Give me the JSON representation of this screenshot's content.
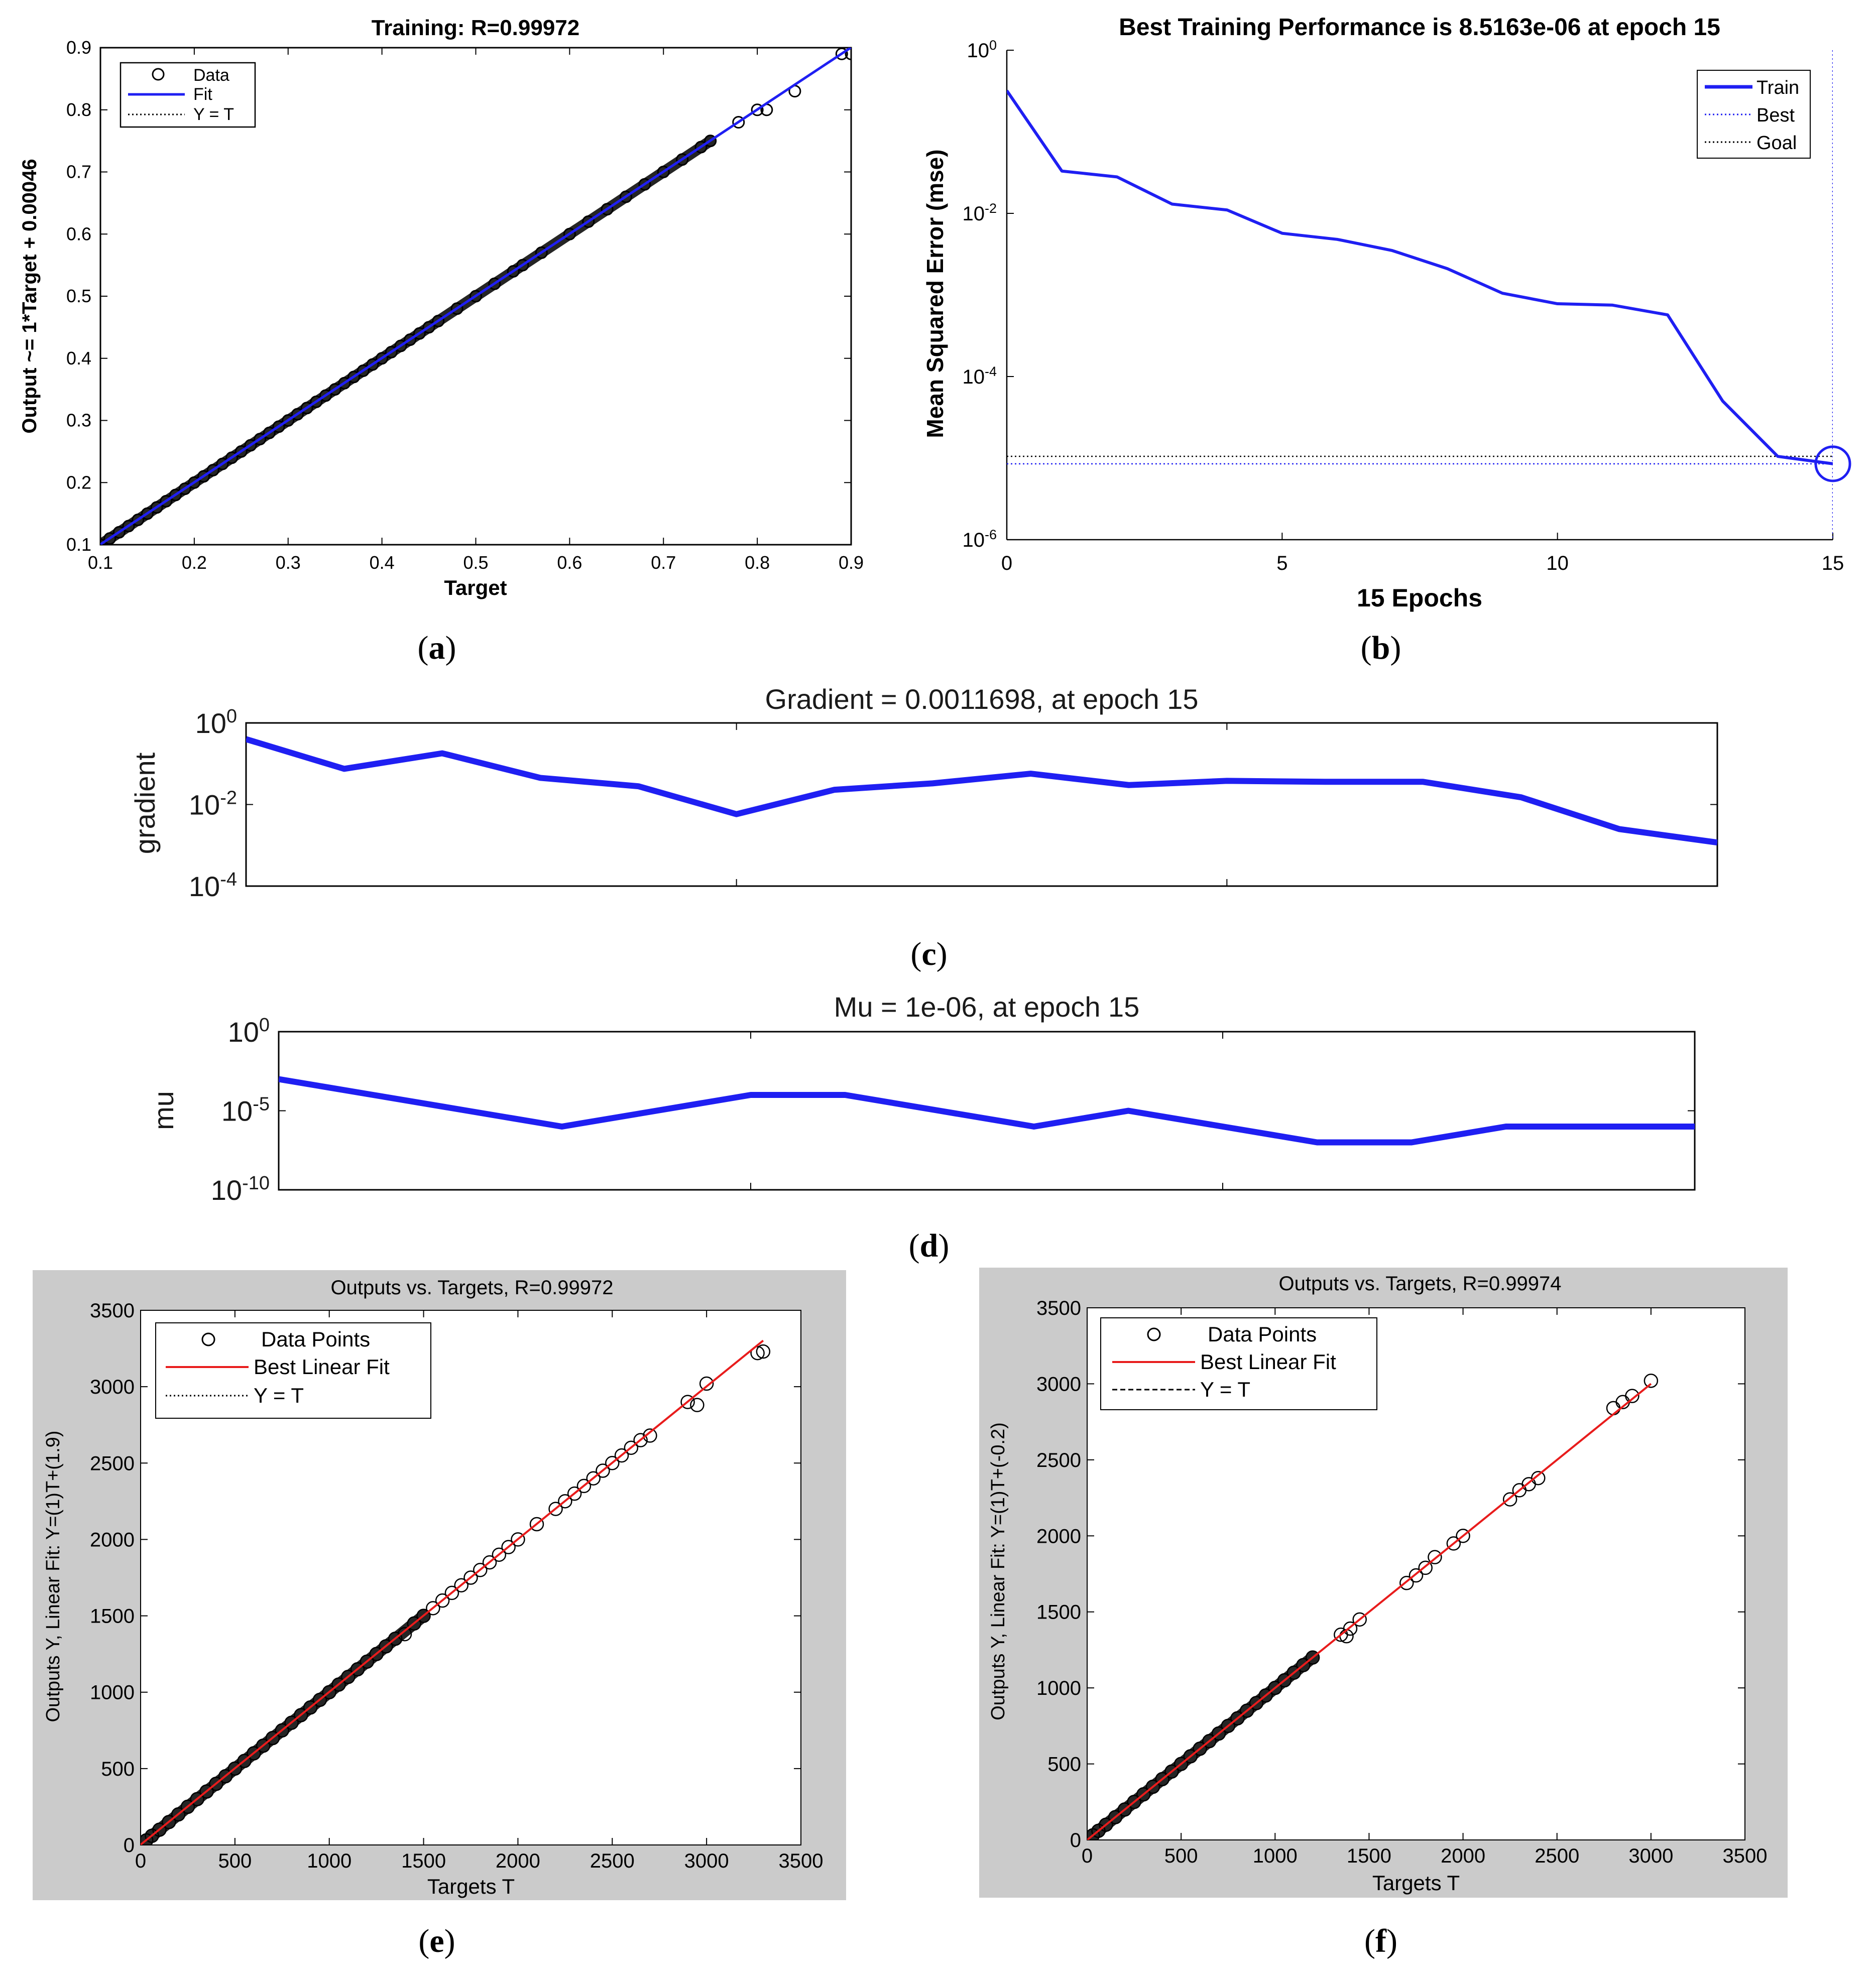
{
  "colors": {
    "blue": "#1f1ff2",
    "red": "#e81c1c",
    "black": "#000000",
    "panel_gray": "#cbcbcb"
  },
  "chart_data": [
    {
      "id": "a",
      "caption": "a",
      "type": "scatter",
      "title": "Training: R=0.99972",
      "xlabel": "Target",
      "ylabel": "Output ~= 1*Target + 0.00046",
      "xlim": [
        0.1,
        0.9
      ],
      "ylim": [
        0.1,
        0.9
      ],
      "xticks": [
        "0.1",
        "0.2",
        "0.3",
        "0.4",
        "0.5",
        "0.6",
        "0.7",
        "0.8",
        "0.9"
      ],
      "yticks": [
        "0.1",
        "0.2",
        "0.3",
        "0.4",
        "0.5",
        "0.6",
        "0.7",
        "0.8",
        "0.9"
      ],
      "legend": [
        "Data",
        "Fit",
        "Y = T"
      ],
      "fit": {
        "slope": 1,
        "intercept": 0.00046
      },
      "points_x": [
        0.1,
        0.11,
        0.12,
        0.13,
        0.14,
        0.15,
        0.16,
        0.17,
        0.18,
        0.19,
        0.2,
        0.21,
        0.22,
        0.23,
        0.24,
        0.25,
        0.26,
        0.27,
        0.28,
        0.29,
        0.3,
        0.31,
        0.32,
        0.33,
        0.34,
        0.35,
        0.36,
        0.37,
        0.38,
        0.39,
        0.4,
        0.41,
        0.42,
        0.43,
        0.44,
        0.45,
        0.46,
        0.48,
        0.5,
        0.52,
        0.54,
        0.55,
        0.57,
        0.6,
        0.62,
        0.64,
        0.66,
        0.68,
        0.7,
        0.72,
        0.74,
        0.75,
        0.78,
        0.8,
        0.81,
        0.84,
        0.89,
        0.9
      ],
      "points_y": [
        0.1,
        0.11,
        0.12,
        0.13,
        0.14,
        0.15,
        0.16,
        0.17,
        0.18,
        0.19,
        0.2,
        0.21,
        0.22,
        0.23,
        0.24,
        0.25,
        0.26,
        0.27,
        0.28,
        0.29,
        0.3,
        0.31,
        0.32,
        0.33,
        0.34,
        0.35,
        0.36,
        0.37,
        0.38,
        0.39,
        0.4,
        0.41,
        0.42,
        0.43,
        0.44,
        0.45,
        0.46,
        0.48,
        0.5,
        0.52,
        0.54,
        0.55,
        0.57,
        0.6,
        0.62,
        0.64,
        0.66,
        0.68,
        0.7,
        0.72,
        0.74,
        0.75,
        0.78,
        0.8,
        0.8,
        0.83,
        0.89,
        0.89
      ]
    },
    {
      "id": "b",
      "caption": "b",
      "type": "line",
      "yscale": "log",
      "title": "Best Training Performance is 8.5163e-06 at epoch 15",
      "xlabel": "15 Epochs",
      "ylabel": "Mean Squared Error  (mse)",
      "xlim": [
        0,
        15
      ],
      "ylim_exp": [
        -6,
        0
      ],
      "xticks": [
        "0",
        "5",
        "10",
        "15"
      ],
      "yticks_exp": [
        "0",
        "-2",
        "-4",
        "-6"
      ],
      "legend": [
        "Train",
        "Best",
        "Goal"
      ],
      "x": [
        0,
        1,
        2,
        3,
        4,
        5,
        6,
        7,
        8,
        9,
        10,
        11,
        12,
        13,
        14,
        15
      ],
      "y": [
        0.32,
        0.033,
        0.028,
        0.013,
        0.011,
        0.0057,
        0.0048,
        0.0035,
        0.0021,
        0.00105,
        0.00078,
        0.00075,
        0.00057,
        5e-05,
        1.05e-05,
        8.5163e-06
      ],
      "best": {
        "x": 15,
        "y": 8.5163e-06
      },
      "goal_y": 1.05e-05
    },
    {
      "id": "c",
      "caption": "c",
      "type": "line",
      "yscale": "log",
      "title": "Gradient = 0.0011698, at epoch 15",
      "ylabel": "gradient",
      "xlim": [
        0,
        15
      ],
      "ylim_exp": [
        -4,
        0
      ],
      "yticks_exp": [
        "0",
        "-2",
        "-4"
      ],
      "x": [
        0,
        1,
        2,
        3,
        4,
        5,
        6,
        7,
        8,
        9,
        10,
        11,
        12,
        13,
        14,
        15
      ],
      "y": [
        0.4,
        0.075,
        0.18,
        0.045,
        0.028,
        0.0058,
        0.023,
        0.033,
        0.057,
        0.03,
        0.038,
        0.036,
        0.036,
        0.015,
        0.0025,
        0.0011698
      ]
    },
    {
      "id": "d",
      "caption": "d",
      "type": "line",
      "yscale": "log",
      "title": "Mu = 1e-06, at epoch 15",
      "ylabel": "mu",
      "xlim": [
        0,
        15
      ],
      "ylim_exp": [
        -10,
        0
      ],
      "yticks_exp": [
        "0",
        "-5",
        "-10"
      ],
      "x": [
        0,
        1,
        2,
        3,
        4,
        5,
        6,
        7,
        8,
        9,
        10,
        11,
        12,
        13,
        14,
        15
      ],
      "y": [
        0.001,
        0.0001,
        1e-05,
        1e-06,
        1e-05,
        0.0001,
        0.0001,
        1e-05,
        1e-06,
        1e-05,
        1e-06,
        1e-07,
        1e-07,
        1e-06,
        1e-06,
        1e-06
      ]
    },
    {
      "id": "e",
      "caption": "e",
      "type": "scatter",
      "title": "Outputs vs. Targets, R=0.99972",
      "xlabel": "Targets T",
      "ylabel": "Outputs Y,  Linear Fit: Y=(1)T+(1.9)",
      "xlim": [
        0,
        3500
      ],
      "ylim": [
        0,
        3500
      ],
      "xticks": [
        "0",
        "500",
        "1000",
        "1500",
        "2000",
        "2500",
        "3000",
        "3500"
      ],
      "yticks": [
        "0",
        "500",
        "1000",
        "1500",
        "2000",
        "2500",
        "3000",
        "3500"
      ],
      "legend": [
        "Data Points",
        "Best Linear Fit",
        "Y = T"
      ],
      "fit": {
        "slope": 1,
        "intercept": 1.9
      },
      "points_x": [
        30,
        60,
        100,
        150,
        200,
        250,
        300,
        350,
        400,
        450,
        500,
        550,
        600,
        650,
        700,
        750,
        800,
        850,
        900,
        950,
        1000,
        1050,
        1100,
        1150,
        1200,
        1250,
        1300,
        1350,
        1400,
        1450,
        1500,
        1550,
        1600,
        1650,
        1700,
        1750,
        1800,
        1850,
        1900,
        1950,
        2000,
        2100,
        2200,
        2250,
        2300,
        2350,
        2400,
        2450,
        2500,
        2550,
        2600,
        2650,
        2700,
        2900,
        2950,
        3000,
        3270,
        3300
      ],
      "points_y": [
        30,
        60,
        100,
        150,
        200,
        250,
        300,
        350,
        400,
        450,
        500,
        550,
        600,
        650,
        700,
        750,
        800,
        850,
        900,
        950,
        1000,
        1050,
        1100,
        1150,
        1200,
        1250,
        1300,
        1350,
        1380,
        1450,
        1500,
        1550,
        1600,
        1650,
        1700,
        1750,
        1800,
        1850,
        1900,
        1950,
        2000,
        2100,
        2200,
        2250,
        2300,
        2350,
        2400,
        2450,
        2500,
        2550,
        2600,
        2650,
        2680,
        2900,
        2880,
        3020,
        3220,
        3230
      ]
    },
    {
      "id": "f",
      "caption": "f",
      "type": "scatter",
      "title": "Outputs vs. Targets, R=0.99974",
      "xlabel": "Targets T",
      "ylabel": "Outputs Y,  Linear Fit: Y=(1)T+(-0.2)",
      "xlim": [
        0,
        3500
      ],
      "ylim": [
        0,
        3500
      ],
      "xticks": [
        "0",
        "500",
        "1000",
        "1500",
        "2000",
        "2500",
        "3000",
        "3500"
      ],
      "yticks": [
        "0",
        "500",
        "1000",
        "1500",
        "2000",
        "2500",
        "3000",
        "3500"
      ],
      "legend": [
        "Data Points",
        "Best Linear Fit",
        "Y = T"
      ],
      "fit": {
        "slope": 1,
        "intercept": -0.2
      },
      "points_x": [
        30,
        60,
        100,
        150,
        200,
        250,
        300,
        350,
        400,
        450,
        500,
        550,
        600,
        650,
        700,
        750,
        800,
        850,
        900,
        950,
        1000,
        1050,
        1100,
        1150,
        1200,
        1350,
        1380,
        1400,
        1450,
        1700,
        1750,
        1800,
        1850,
        1950,
        2000,
        2250,
        2300,
        2350,
        2400,
        2800,
        2850,
        2900,
        3000
      ],
      "points_y": [
        30,
        60,
        100,
        150,
        200,
        250,
        300,
        350,
        400,
        450,
        500,
        550,
        600,
        650,
        700,
        750,
        800,
        850,
        900,
        950,
        1000,
        1050,
        1100,
        1150,
        1200,
        1350,
        1340,
        1390,
        1450,
        1690,
        1740,
        1790,
        1860,
        1950,
        2000,
        2240,
        2300,
        2340,
        2380,
        2840,
        2880,
        2920,
        3020
      ]
    }
  ]
}
